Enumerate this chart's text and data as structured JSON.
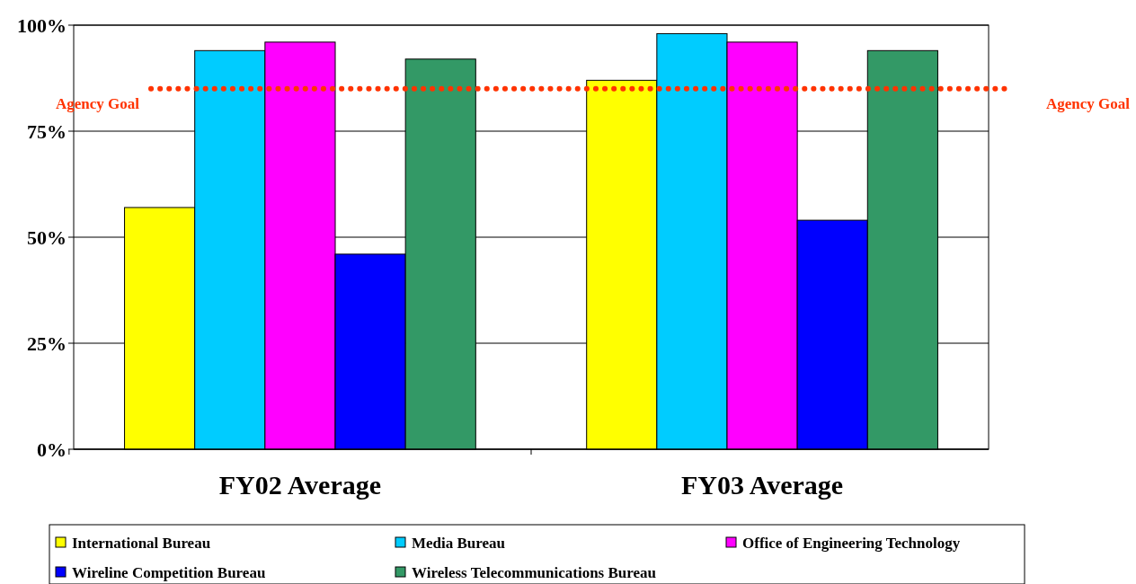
{
  "chart_data": {
    "type": "bar",
    "categories": [
      "FY02 Average",
      "FY03 Average"
    ],
    "series": [
      {
        "name": "International Bureau",
        "color": "#ffff00",
        "values": [
          57,
          87
        ]
      },
      {
        "name": "Media Bureau",
        "color": "#00ccff",
        "values": [
          94,
          98
        ]
      },
      {
        "name": "Office of Engineering Technology",
        "color": "#ff00ff",
        "values": [
          96,
          96
        ]
      },
      {
        "name": "Wireline Competition Bureau",
        "color": "#0000ff",
        "values": [
          46,
          54
        ]
      },
      {
        "name": "Wireless Telecommunications Bureau",
        "color": "#339966",
        "values": [
          92,
          94
        ]
      }
    ],
    "ylim": [
      0,
      100
    ],
    "yticks": [
      {
        "value": 0,
        "label": "0%"
      },
      {
        "value": 25,
        "label": "25%"
      },
      {
        "value": 50,
        "label": "50%"
      },
      {
        "value": 75,
        "label": "75%"
      },
      {
        "value": 100,
        "label": "100%"
      }
    ],
    "grid": "y",
    "legend": "bottom",
    "ref_lines": [
      {
        "axis": "y",
        "value": 85,
        "label": "Agency Goal",
        "color": "#ff3300",
        "line_style": "dotted"
      }
    ]
  }
}
